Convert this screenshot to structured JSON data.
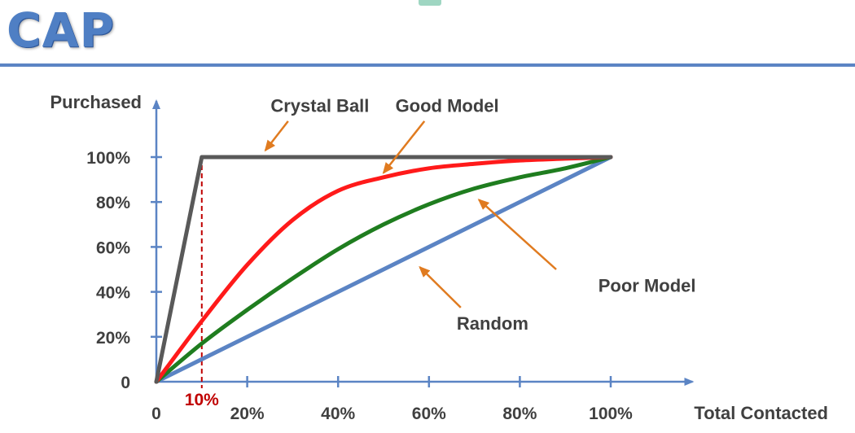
{
  "slide": {
    "title": "CAP"
  },
  "colors": {
    "axis": "#5b84c4",
    "crystal": "#595959",
    "good": "#ff1a1a",
    "poor": "#1f7d1f",
    "random": "#5b84c4",
    "arrow": "#e07b20",
    "marker": "#c00000",
    "text": "#404040"
  },
  "chart_data": {
    "type": "line",
    "title": "CAP",
    "xlabel": "Total Contacted",
    "ylabel": "Purchased",
    "xlim": [
      0,
      118
    ],
    "ylim": [
      0,
      125
    ],
    "x_ticks": [
      {
        "value": 0,
        "label": "0"
      },
      {
        "value": 20,
        "label": "20%"
      },
      {
        "value": 40,
        "label": "40%"
      },
      {
        "value": 60,
        "label": "60%"
      },
      {
        "value": 80,
        "label": "80%"
      },
      {
        "value": 100,
        "label": "100%"
      }
    ],
    "y_ticks": [
      {
        "value": 0,
        "label": "0"
      },
      {
        "value": 20,
        "label": "20%"
      },
      {
        "value": 40,
        "label": "40%"
      },
      {
        "value": 60,
        "label": "60%"
      },
      {
        "value": 80,
        "label": "80%"
      },
      {
        "value": 100,
        "label": "100%"
      }
    ],
    "grid": false,
    "series": [
      {
        "name": "Crystal Ball",
        "color": "#595959",
        "smooth": false,
        "points": [
          [
            0,
            0
          ],
          [
            10,
            100
          ],
          [
            100,
            100
          ]
        ]
      },
      {
        "name": "Good Model",
        "color": "#ff1a1a",
        "smooth": true,
        "points": [
          [
            0,
            0
          ],
          [
            10,
            27
          ],
          [
            20,
            52
          ],
          [
            30,
            72
          ],
          [
            40,
            85
          ],
          [
            50,
            91
          ],
          [
            60,
            95
          ],
          [
            70,
            97
          ],
          [
            80,
            98.5
          ],
          [
            90,
            99.3
          ],
          [
            100,
            100
          ]
        ]
      },
      {
        "name": "Poor Model",
        "color": "#1f7d1f",
        "smooth": true,
        "points": [
          [
            0,
            0
          ],
          [
            10,
            17
          ],
          [
            20,
            32
          ],
          [
            30,
            46
          ],
          [
            40,
            59
          ],
          [
            50,
            70
          ],
          [
            60,
            79
          ],
          [
            70,
            86
          ],
          [
            80,
            91
          ],
          [
            90,
            95
          ],
          [
            100,
            100
          ]
        ]
      },
      {
        "name": "Random",
        "color": "#5b84c4",
        "smooth": false,
        "points": [
          [
            0,
            0
          ],
          [
            100,
            100
          ]
        ]
      }
    ],
    "annotations": [
      {
        "text": "Crystal Ball",
        "label_at": [
          36,
          123
        ],
        "from": [
          29,
          116
        ],
        "to": [
          24,
          103
        ]
      },
      {
        "text": "Good Model",
        "label_at": [
          64,
          123
        ],
        "from": [
          59,
          116
        ],
        "to": [
          50,
          93
        ]
      },
      {
        "text": "Poor Model",
        "label_at": [
          108,
          43
        ],
        "from": [
          88,
          50
        ],
        "to": [
          71,
          81
        ]
      },
      {
        "text": "Random",
        "label_at": [
          74,
          26
        ],
        "from": [
          67,
          33
        ],
        "to": [
          58,
          51
        ]
      }
    ],
    "marker": {
      "x": 10,
      "from_y": 0,
      "to_y": 100,
      "label": "10%"
    }
  }
}
